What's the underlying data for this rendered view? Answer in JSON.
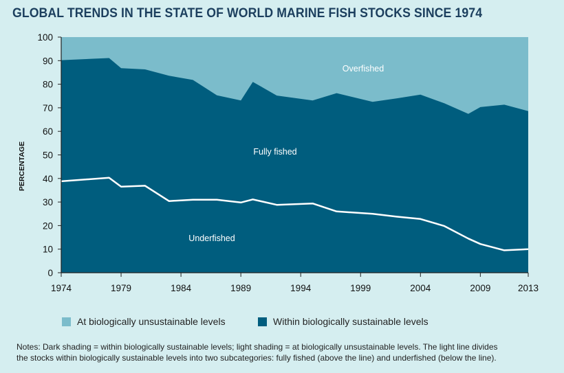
{
  "title": "GLOBAL TRENDS IN THE STATE OF WORLD MARINE FISH STOCKS SINCE 1974",
  "legend": {
    "unsustainable": "At biologically unsustainable levels",
    "sustainable": "Within biologically sustainable levels"
  },
  "notes": {
    "line1": "Notes: Dark shading = within biologically sustainable levels; light shading = at biologically unsustainable levels. The light line divides",
    "line2": "the stocks within biologically sustainable levels into two subcategories: fully fished (above the line) and underfished (below the line)."
  },
  "colors": {
    "background": "#d5eef0",
    "unsustainable": "#7bbccb",
    "sustainable": "#005d7e",
    "divider_line": "#ffffff",
    "title": "#1c3f5e"
  },
  "chart_data": {
    "type": "area",
    "title": "GLOBAL TRENDS IN THE STATE OF WORLD MARINE FISH STOCKS SINCE 1974",
    "xlabel": "",
    "ylabel": "PERCENTAGE",
    "xlim": [
      1974,
      2013
    ],
    "ylim": [
      0,
      100
    ],
    "x_ticks": [
      1974,
      1979,
      1984,
      1989,
      1994,
      1999,
      2004,
      2009,
      2013
    ],
    "y_ticks": [
      0,
      10,
      20,
      30,
      40,
      50,
      60,
      70,
      80,
      90,
      100
    ],
    "x": [
      1974,
      1978,
      1979,
      1981,
      1983,
      1985,
      1987,
      1989,
      1990,
      1992,
      1995,
      1997,
      2000,
      2002,
      2004,
      2006,
      2008,
      2009,
      2011,
      2013
    ],
    "series": [
      {
        "name": "Within biologically sustainable levels",
        "values": [
          90.2,
          91.1,
          86.8,
          86.3,
          83.6,
          81.8,
          75.3,
          73.1,
          81.0,
          75.2,
          73.1,
          76.2,
          72.5,
          74.0,
          75.6,
          71.9,
          67.4,
          70.3,
          71.3,
          68.6
        ]
      },
      {
        "name": "Fully fished / underfished divider",
        "values": [
          38.8,
          40.3,
          36.5,
          36.9,
          30.4,
          31.0,
          31.0,
          29.8,
          31.1,
          28.8,
          29.4,
          26.0,
          25.0,
          23.8,
          22.8,
          19.8,
          14.5,
          12.2,
          9.5,
          10.0
        ]
      }
    ],
    "region_labels": {
      "top": "Overfished",
      "middle": "Fully fished",
      "bottom": "Underfished"
    }
  }
}
